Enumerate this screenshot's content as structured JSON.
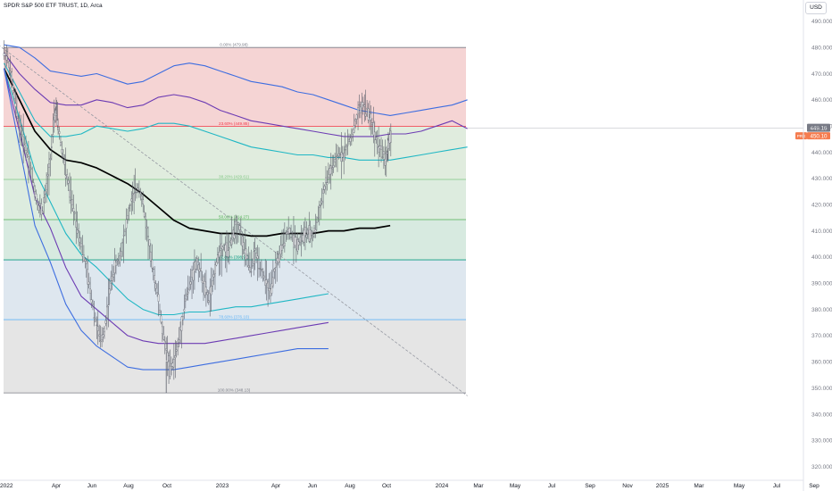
{
  "header": {
    "title": "SPDR S&P 500 ETF TRUST, 1D, Arca",
    "currency": "USD"
  },
  "price_tags": {
    "last": "449.16",
    "pre": "PRE",
    "pre_value": "450.10",
    "last_color": "#787b86",
    "pre_color": "#f57c4f"
  },
  "chart_data": {
    "type": "candlestick",
    "title": "SPDR S&P 500 ETF TRUST, 1D, Arca",
    "x_ticks": [
      "2022",
      "Apr",
      "Jun",
      "Aug",
      "Oct",
      "2023",
      "Apr",
      "Jun",
      "Aug",
      "Oct",
      "2024",
      "Mar",
      "May",
      "Jul",
      "Sep",
      "Nov",
      "2025",
      "Mar",
      "May",
      "Jul",
      "Sep"
    ],
    "y_ticks": [
      320,
      330,
      340,
      350,
      360,
      370,
      380,
      390,
      400,
      410,
      420,
      430,
      440,
      450,
      460,
      470,
      480,
      490
    ],
    "ylim": [
      316,
      494
    ],
    "last_price": 449.16,
    "fib_levels": [
      {
        "label": "0.00% (479.98)",
        "price": 479.98,
        "color": "#787b86"
      },
      {
        "label": "23.60% (449.85)",
        "price": 449.85,
        "color": "#f23645"
      },
      {
        "label": "38.20% (429.61)",
        "price": 429.61,
        "color": "#81c784"
      },
      {
        "label": "50.00% (414.27)",
        "price": 414.27,
        "color": "#4caf50"
      },
      {
        "label": "61.80% (398.93)",
        "price": 398.93,
        "color": "#089981"
      },
      {
        "label": "78.60% (376.10)",
        "price": 376.1,
        "color": "#64b5f6"
      },
      {
        "label": "100.00% (348.13)",
        "price": 348.13,
        "color": "#787b86"
      }
    ],
    "fib_zone_colors": [
      "#f2c5c5",
      "#d6e6d3",
      "#d2e6d4",
      "#c9e3d6",
      "#d3dfea",
      "#dcdcdc"
    ],
    "bands": [
      {
        "color": "#3d6de0",
        "points": [
          [
            0,
            481
          ],
          [
            8,
            480
          ],
          [
            16,
            476
          ],
          [
            24,
            471
          ],
          [
            32,
            470
          ],
          [
            40,
            469
          ],
          [
            48,
            470
          ],
          [
            56,
            468
          ],
          [
            64,
            466
          ],
          [
            72,
            467
          ],
          [
            80,
            470
          ],
          [
            88,
            473
          ],
          [
            96,
            474
          ],
          [
            104,
            473
          ],
          [
            112,
            471
          ],
          [
            120,
            469
          ],
          [
            128,
            467
          ],
          [
            136,
            466
          ],
          [
            144,
            465
          ],
          [
            152,
            463
          ],
          [
            160,
            462
          ],
          [
            168,
            460
          ],
          [
            176,
            458
          ],
          [
            184,
            456
          ],
          [
            192,
            455
          ],
          [
            200,
            454
          ],
          [
            208,
            455
          ],
          [
            216,
            456
          ],
          [
            224,
            457
          ],
          [
            232,
            458
          ],
          [
            236,
            459
          ],
          [
            240,
            460
          ]
        ]
      },
      {
        "color": "#6c3bb3",
        "points": [
          [
            0,
            478
          ],
          [
            8,
            470
          ],
          [
            16,
            464
          ],
          [
            24,
            459
          ],
          [
            32,
            458
          ],
          [
            40,
            458
          ],
          [
            48,
            460
          ],
          [
            56,
            459
          ],
          [
            64,
            457
          ],
          [
            72,
            458
          ],
          [
            80,
            461
          ],
          [
            88,
            462
          ],
          [
            96,
            461
          ],
          [
            104,
            459
          ],
          [
            112,
            456
          ],
          [
            120,
            454
          ],
          [
            128,
            452
          ],
          [
            136,
            451
          ],
          [
            144,
            450
          ],
          [
            152,
            449
          ],
          [
            160,
            448
          ],
          [
            168,
            447
          ],
          [
            176,
            446
          ],
          [
            184,
            446
          ],
          [
            192,
            446
          ],
          [
            200,
            447
          ],
          [
            208,
            447
          ],
          [
            216,
            448
          ],
          [
            224,
            450
          ],
          [
            232,
            452
          ],
          [
            240,
            449
          ]
        ]
      },
      {
        "color": "#1fb7c4",
        "points": [
          [
            0,
            474
          ],
          [
            8,
            463
          ],
          [
            16,
            452
          ],
          [
            24,
            446
          ],
          [
            32,
            446
          ],
          [
            40,
            447
          ],
          [
            48,
            450
          ],
          [
            56,
            449
          ],
          [
            64,
            448
          ],
          [
            72,
            449
          ],
          [
            80,
            451
          ],
          [
            88,
            451
          ],
          [
            96,
            450
          ],
          [
            104,
            448
          ],
          [
            112,
            446
          ],
          [
            120,
            444
          ],
          [
            128,
            442
          ],
          [
            136,
            441
          ],
          [
            144,
            440
          ],
          [
            152,
            439
          ],
          [
            160,
            439
          ],
          [
            168,
            438
          ],
          [
            176,
            438
          ],
          [
            184,
            437
          ],
          [
            192,
            437
          ],
          [
            200,
            437
          ],
          [
            208,
            438
          ],
          [
            216,
            439
          ],
          [
            224,
            440
          ],
          [
            232,
            441
          ],
          [
            240,
            442
          ]
        ]
      },
      {
        "color": "#000000",
        "points": [
          [
            0,
            472
          ],
          [
            8,
            460
          ],
          [
            16,
            448
          ],
          [
            24,
            441
          ],
          [
            32,
            437
          ],
          [
            40,
            436
          ],
          [
            48,
            434
          ],
          [
            56,
            431
          ],
          [
            64,
            428
          ],
          [
            72,
            424
          ],
          [
            80,
            419
          ],
          [
            88,
            414
          ],
          [
            96,
            411
          ],
          [
            104,
            410
          ],
          [
            112,
            409
          ],
          [
            120,
            409
          ],
          [
            128,
            408
          ],
          [
            136,
            408
          ],
          [
            144,
            409
          ],
          [
            152,
            409
          ],
          [
            160,
            409
          ],
          [
            168,
            410
          ],
          [
            176,
            410
          ],
          [
            184,
            411
          ],
          [
            192,
            411
          ],
          [
            200,
            412
          ]
        ]
      },
      {
        "color": "#1fb7c4",
        "points": [
          [
            0,
            472
          ],
          [
            8,
            453
          ],
          [
            16,
            433
          ],
          [
            24,
            421
          ],
          [
            32,
            409
          ],
          [
            40,
            401
          ],
          [
            48,
            396
          ],
          [
            56,
            390
          ],
          [
            64,
            384
          ],
          [
            72,
            380
          ],
          [
            80,
            378
          ],
          [
            88,
            378
          ],
          [
            96,
            379
          ],
          [
            104,
            379
          ],
          [
            112,
            380
          ],
          [
            120,
            381
          ],
          [
            128,
            381
          ],
          [
            136,
            382
          ],
          [
            144,
            383
          ],
          [
            152,
            384
          ],
          [
            160,
            385
          ],
          [
            168,
            386
          ]
        ]
      },
      {
        "color": "#6c3bb3",
        "points": [
          [
            0,
            472
          ],
          [
            8,
            448
          ],
          [
            16,
            423
          ],
          [
            24,
            411
          ],
          [
            32,
            396
          ],
          [
            40,
            385
          ],
          [
            48,
            380
          ],
          [
            56,
            375
          ],
          [
            64,
            370
          ],
          [
            72,
            368
          ],
          [
            80,
            367
          ],
          [
            88,
            367
          ],
          [
            96,
            367
          ],
          [
            104,
            367
          ],
          [
            112,
            368
          ],
          [
            120,
            369
          ],
          [
            128,
            370
          ],
          [
            136,
            371
          ],
          [
            144,
            372
          ],
          [
            152,
            373
          ],
          [
            160,
            374
          ],
          [
            168,
            375
          ]
        ]
      },
      {
        "color": "#3d6de0",
        "points": [
          [
            0,
            472
          ],
          [
            8,
            442
          ],
          [
            16,
            412
          ],
          [
            24,
            398
          ],
          [
            32,
            382
          ],
          [
            40,
            372
          ],
          [
            48,
            366
          ],
          [
            56,
            362
          ],
          [
            64,
            358
          ],
          [
            72,
            357
          ],
          [
            80,
            357
          ],
          [
            88,
            357
          ],
          [
            96,
            358
          ],
          [
            104,
            359
          ],
          [
            112,
            360
          ],
          [
            120,
            361
          ],
          [
            128,
            362
          ],
          [
            136,
            363
          ],
          [
            144,
            364
          ],
          [
            152,
            365
          ],
          [
            160,
            365
          ],
          [
            168,
            365
          ]
        ]
      }
    ],
    "price_path": [
      [
        0,
        478
      ],
      [
        2,
        476
      ],
      [
        4,
        468
      ],
      [
        6,
        458
      ],
      [
        8,
        450
      ],
      [
        10,
        445
      ],
      [
        12,
        440
      ],
      [
        14,
        433
      ],
      [
        16,
        425
      ],
      [
        18,
        419
      ],
      [
        20,
        418
      ],
      [
        22,
        426
      ],
      [
        24,
        437
      ],
      [
        26,
        452
      ],
      [
        27,
        457
      ],
      [
        28,
        450
      ],
      [
        30,
        441
      ],
      [
        32,
        433
      ],
      [
        34,
        425
      ],
      [
        36,
        418
      ],
      [
        38,
        412
      ],
      [
        40,
        405
      ],
      [
        42,
        398
      ],
      [
        44,
        390
      ],
      [
        46,
        382
      ],
      [
        48,
        374
      ],
      [
        50,
        368
      ],
      [
        52,
        372
      ],
      [
        54,
        383
      ],
      [
        56,
        393
      ],
      [
        58,
        397
      ],
      [
        60,
        400
      ],
      [
        62,
        407
      ],
      [
        64,
        415
      ],
      [
        66,
        421
      ],
      [
        68,
        425
      ],
      [
        70,
        427
      ],
      [
        72,
        420
      ],
      [
        74,
        410
      ],
      [
        76,
        400
      ],
      [
        78,
        392
      ],
      [
        80,
        384
      ],
      [
        82,
        372
      ],
      [
        84,
        365
      ],
      [
        86,
        357
      ],
      [
        88,
        360
      ],
      [
        90,
        366
      ],
      [
        92,
        374
      ],
      [
        94,
        384
      ],
      [
        96,
        389
      ],
      [
        98,
        394
      ],
      [
        100,
        398
      ],
      [
        102,
        394
      ],
      [
        104,
        388
      ],
      [
        106,
        384
      ],
      [
        108,
        389
      ],
      [
        110,
        398
      ],
      [
        112,
        402
      ],
      [
        114,
        404
      ],
      [
        116,
        402
      ],
      [
        118,
        407
      ],
      [
        120,
        412
      ],
      [
        122,
        411
      ],
      [
        124,
        404
      ],
      [
        126,
        399
      ],
      [
        128,
        396
      ],
      [
        130,
        401
      ],
      [
        132,
        398
      ],
      [
        134,
        394
      ],
      [
        136,
        390
      ],
      [
        138,
        386
      ],
      [
        140,
        394
      ],
      [
        142,
        399
      ],
      [
        144,
        404
      ],
      [
        146,
        409
      ],
      [
        148,
        410
      ],
      [
        150,
        407
      ],
      [
        152,
        405
      ],
      [
        154,
        407
      ],
      [
        156,
        409
      ],
      [
        158,
        409
      ],
      [
        160,
        408
      ],
      [
        162,
        413
      ],
      [
        164,
        420
      ],
      [
        166,
        426
      ],
      [
        168,
        431
      ],
      [
        170,
        434
      ],
      [
        172,
        437
      ],
      [
        174,
        440
      ],
      [
        176,
        439
      ],
      [
        178,
        443
      ],
      [
        180,
        446
      ],
      [
        182,
        451
      ],
      [
        184,
        456
      ],
      [
        186,
        458
      ],
      [
        188,
        456
      ],
      [
        190,
        453
      ],
      [
        192,
        447
      ],
      [
        194,
        443
      ],
      [
        196,
        440
      ],
      [
        198,
        437
      ],
      [
        199,
        443
      ],
      [
        201,
        447
      ]
    ],
    "trendline": [
      [
        -3,
        481
      ],
      [
        240,
        347
      ]
    ],
    "lows": [
      {
        "t": 84,
        "p": 348.13
      }
    ]
  }
}
